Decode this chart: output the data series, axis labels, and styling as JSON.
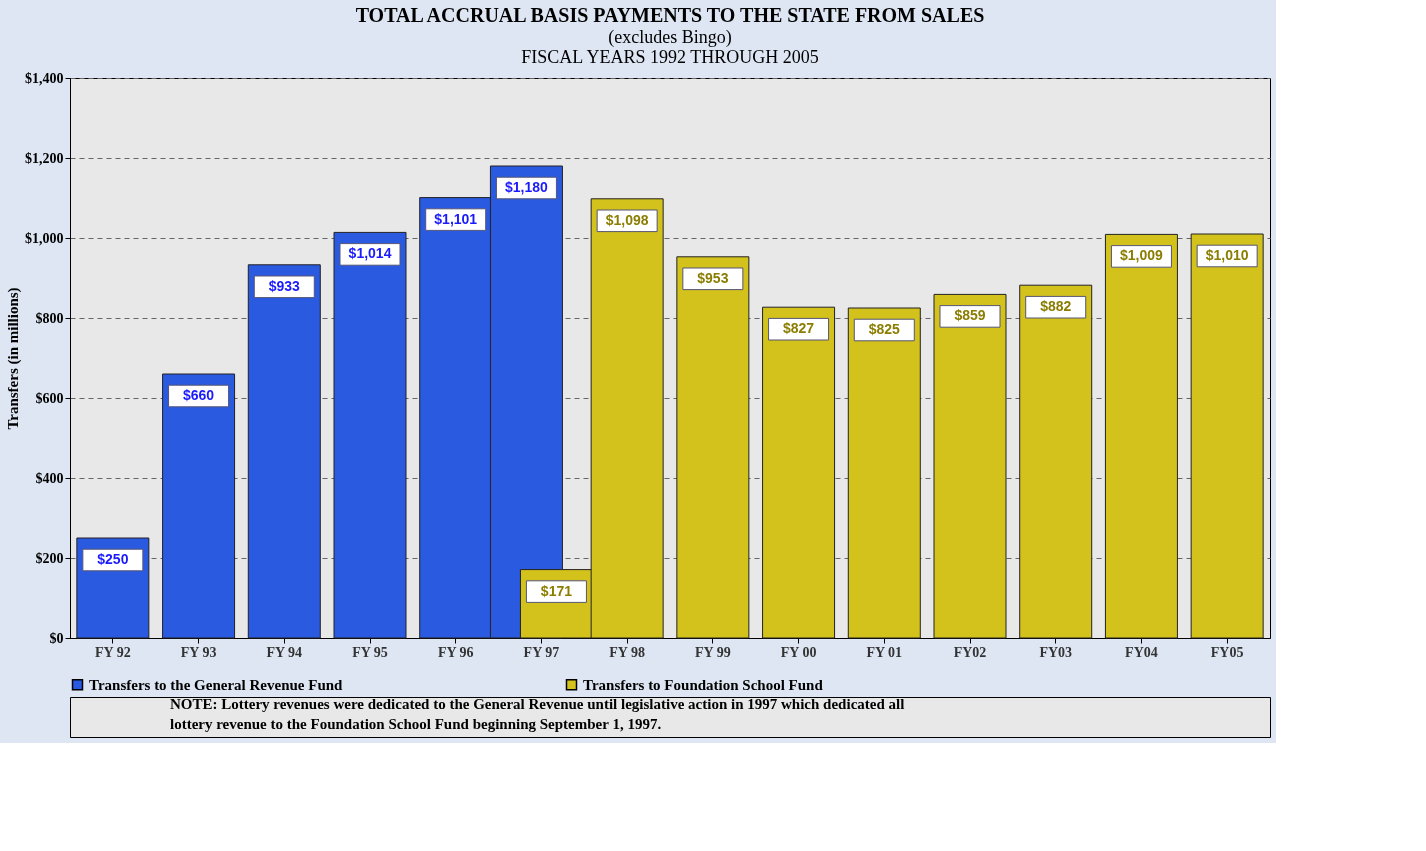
{
  "chart_data": {
    "type": "bar",
    "title": "TOTAL ACCRUAL BASIS PAYMENTS TO THE STATE FROM SALES",
    "subtitle": "(excludes Bingo)\nFISCAL YEARS 1992 THROUGH 2005",
    "ylabel": "Transfers (in millions)",
    "categories": [
      "FY 92",
      "FY 93",
      "FY 94",
      "FY 95",
      "FY 96",
      "FY 97",
      "FY 98",
      "FY 99",
      "FY 00",
      "FY 01",
      "FY02",
      "FY03",
      "FY04",
      "FY05"
    ],
    "series": [
      {
        "name": "Transfers to the General Revenue Fund",
        "color": "#2a5ae0",
        "values": [
          250,
          660,
          933,
          1014,
          1101,
          1180,
          null,
          null,
          null,
          null,
          null,
          null,
          null,
          null
        ],
        "value_labels": [
          "$250",
          "$660",
          "$933",
          "$1,014",
          "$1,101",
          "$1,180",
          null,
          null,
          null,
          null,
          null,
          null,
          null,
          null
        ]
      },
      {
        "name": "Transfers to Foundation School Fund",
        "color": "#d4c21c",
        "values": [
          null,
          null,
          null,
          null,
          null,
          171,
          1098,
          953,
          827,
          825,
          859,
          882,
          1009,
          1010
        ],
        "value_labels": [
          null,
          null,
          null,
          null,
          null,
          "$171",
          "$1,098",
          "$953",
          "$827",
          "$825",
          "$859",
          "$882",
          "$1,009",
          "$1,010"
        ]
      }
    ],
    "ylim": [
      0,
      1400
    ],
    "yticks": [
      {
        "value": 0,
        "label": "$0"
      },
      {
        "value": 200,
        "label": "$200"
      },
      {
        "value": 400,
        "label": "$400"
      },
      {
        "value": 600,
        "label": "$600"
      },
      {
        "value": 800,
        "label": "$800"
      },
      {
        "value": 1000,
        "label": "$1,000"
      },
      {
        "value": 1200,
        "label": "$1,200"
      },
      {
        "value": 1400,
        "label": "$1,400"
      }
    ],
    "grid": "y",
    "legend": "bottom",
    "annotations": [
      "NOTE:  Lottery revenues were dedicated to the General Revenue until legislative action in 1997 which dedicated all lottery revenue to the Foundation School Fund beginning September 1, 1997."
    ]
  }
}
